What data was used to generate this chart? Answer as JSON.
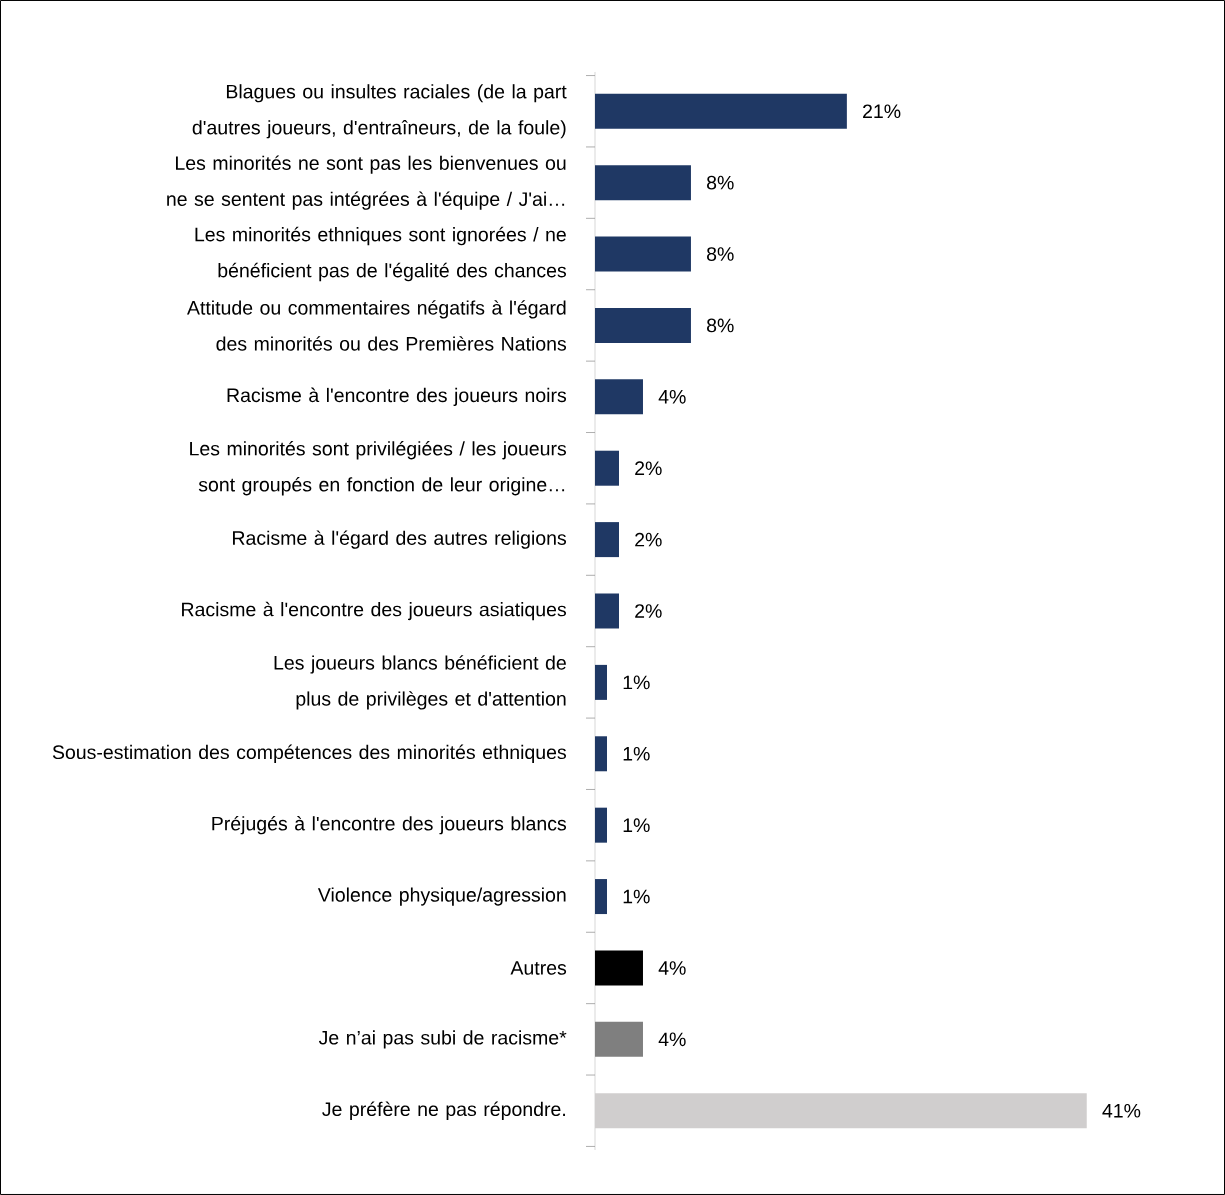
{
  "chart_data": {
    "type": "bar",
    "orientation": "horizontal",
    "tick_labels": "y",
    "categories": [
      "Blagues ou insultes raciales (de la part d'autres joueurs, d'entraîneurs, de la foule)",
      "Les minorités ne sont pas les bienvenues ou ne se sentent pas intégrées à l'équipe / J'ai…",
      "Les minorités ethniques sont ignorées / ne bénéficient pas de l'égalité des chances",
      "Attitude ou commentaires négatifs à l'égard des minorités ou des Premières Nations",
      "Racisme à l'encontre des joueurs noirs",
      "Les minorités sont privilégiées / les joueurs sont groupés en fonction de leur origine…",
      "Racisme à l'égard des autres religions",
      "Racisme à l'encontre des joueurs asiatiques",
      "Les joueurs blancs bénéficient de plus de privilèges et d'attention",
      "Sous-estimation des compétences des minorités ethniques",
      "Préjugés à l'encontre des joueurs blancs",
      "Violence physique/agression",
      "Autres",
      "Je n’ai pas subi de racisme*",
      "Je préfère ne pas répondre."
    ],
    "values": [
      21,
      8,
      8,
      8,
      4,
      2,
      2,
      2,
      1,
      1,
      1,
      1,
      4,
      4,
      41
    ],
    "value_labels": [
      "21%",
      "8%",
      "8%",
      "8%",
      "4%",
      "2%",
      "2%",
      "2%",
      "1%",
      "1%",
      "1%",
      "1%",
      "4%",
      "4%",
      "41%"
    ],
    "colors": [
      "#1f3864",
      "#1f3864",
      "#1f3864",
      "#1f3864",
      "#1f3864",
      "#1f3864",
      "#1f3864",
      "#1f3864",
      "#1f3864",
      "#1f3864",
      "#1f3864",
      "#1f3864",
      "#000000",
      "#7f7f7f",
      "#d0cece"
    ]
  }
}
